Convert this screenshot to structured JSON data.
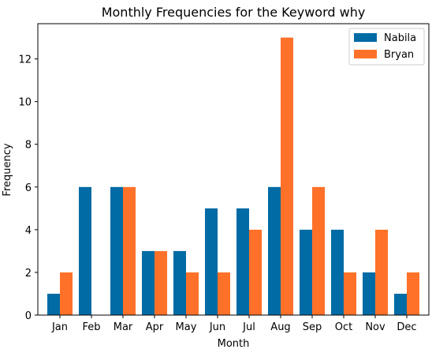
{
  "chart_data": {
    "type": "bar",
    "title": "Monthly Frequencies for the Keyword why",
    "xlabel": "Month",
    "ylabel": "Frequency",
    "categories": [
      "Jan",
      "Feb",
      "Mar",
      "Apr",
      "May",
      "Jun",
      "Jul",
      "Aug",
      "Sep",
      "Oct",
      "Nov",
      "Dec"
    ],
    "series": [
      {
        "name": "Nabila",
        "color": "#006BA4",
        "values": [
          1,
          6,
          6,
          3,
          3,
          5,
          5,
          6,
          4,
          4,
          2,
          1
        ]
      },
      {
        "name": "Bryan",
        "color": "#FF7129",
        "values": [
          2,
          0,
          6,
          3,
          2,
          2,
          4,
          13,
          6,
          2,
          4,
          2
        ]
      }
    ],
    "ylim": [
      0,
      13.65
    ],
    "yticks": [
      0,
      2,
      4,
      6,
      8,
      10,
      12
    ],
    "grid": false,
    "legend_position": "top-right"
  }
}
